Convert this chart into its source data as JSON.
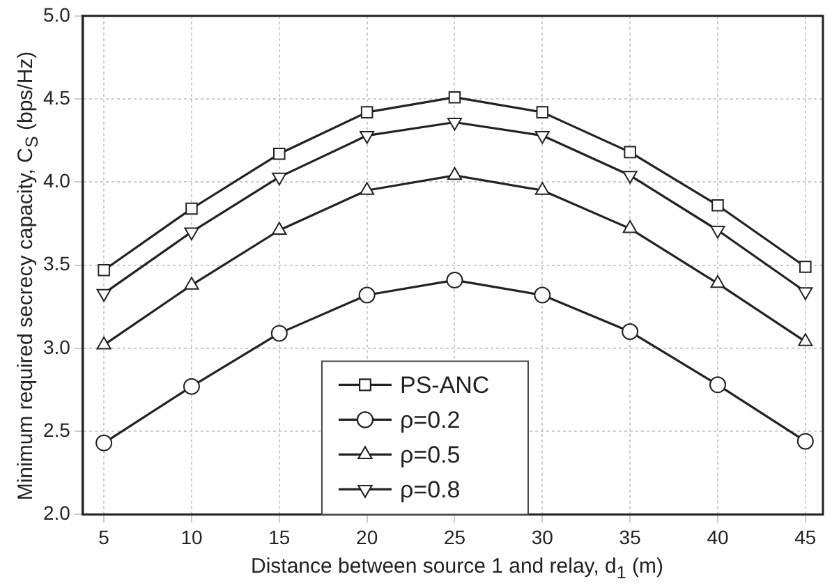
{
  "chart_data": {
    "type": "line",
    "xlabel": "Distance between source 1 and relay, d$_{1}$ (m)",
    "ylabel": "Minimum required secrecy capacity, C$_{S}$ (bps/Hz)",
    "x": [
      5,
      10,
      15,
      20,
      25,
      30,
      35,
      40,
      45
    ],
    "xlim": [
      3.8,
      46
    ],
    "xticks": [
      5,
      10,
      15,
      20,
      25,
      30,
      35,
      40,
      45
    ],
    "ylim": [
      2.0,
      5.0
    ],
    "yticks": [
      {
        "value": 2,
        "label": "2.0"
      },
      {
        "value": 2.5,
        "label": "2.5"
      },
      {
        "value": 3,
        "label": "3.0"
      },
      {
        "value": 3.5,
        "label": "3.5"
      },
      {
        "value": 4,
        "label": "4.0"
      },
      {
        "value": 4.5,
        "label": "4.5"
      },
      {
        "value": 5,
        "label": "5.0"
      }
    ],
    "grid": true,
    "legend": "bottom",
    "line_style": "solid",
    "series": [
      {
        "name": "PS-ANC",
        "color": "#222222",
        "marker": "square",
        "values": [
          3.47,
          3.84,
          4.17,
          4.42,
          4.51,
          4.42,
          4.18,
          3.86,
          3.49
        ]
      },
      {
        "name": "ρ=0.2",
        "color": "#222222",
        "marker": "circle",
        "values": [
          2.43,
          2.77,
          3.09,
          3.32,
          3.41,
          3.32,
          3.1,
          2.78,
          2.44
        ]
      },
      {
        "name": "ρ=0.5",
        "color": "#222222",
        "marker": "triangle",
        "values": [
          3.02,
          3.38,
          3.71,
          3.95,
          4.04,
          3.95,
          3.72,
          3.39,
          3.04
        ]
      },
      {
        "name": "ρ=0.8",
        "color": "#222222",
        "marker": "triangle-down",
        "values": [
          3.33,
          3.7,
          4.03,
          4.28,
          4.36,
          4.28,
          4.04,
          3.71,
          3.34
        ]
      }
    ]
  }
}
